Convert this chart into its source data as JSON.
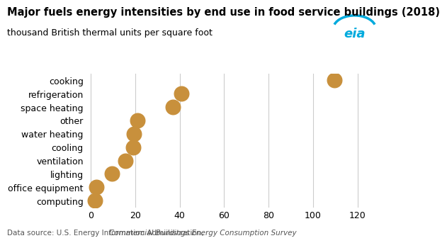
{
  "title": "Major fuels energy intensities by end use in food service buildings (2018)",
  "subtitle": "thousand British thermal units per square foot",
  "categories": [
    "cooking",
    "refrigeration",
    "space heating",
    "other",
    "water heating",
    "cooling",
    "ventilation",
    "lighting",
    "office equipment",
    "computing"
  ],
  "values": [
    109.7,
    40.6,
    37.0,
    21.0,
    19.5,
    19.0,
    15.5,
    9.5,
    2.5,
    2.0
  ],
  "dot_color": "#C8903C",
  "dot_size": 220,
  "xlim": [
    -2,
    128
  ],
  "xticks": [
    0,
    20,
    40,
    60,
    80,
    100,
    120
  ],
  "footer_normal": "Data source: U.S. Energy Information Administration, ",
  "footer_italic": "Commercial Buildings Energy Consumption Survey",
  "background_color": "#ffffff",
  "grid_color": "#cccccc",
  "title_fontsize": 10.5,
  "subtitle_fontsize": 9,
  "label_fontsize": 9,
  "tick_fontsize": 9,
  "footer_fontsize": 7.5
}
